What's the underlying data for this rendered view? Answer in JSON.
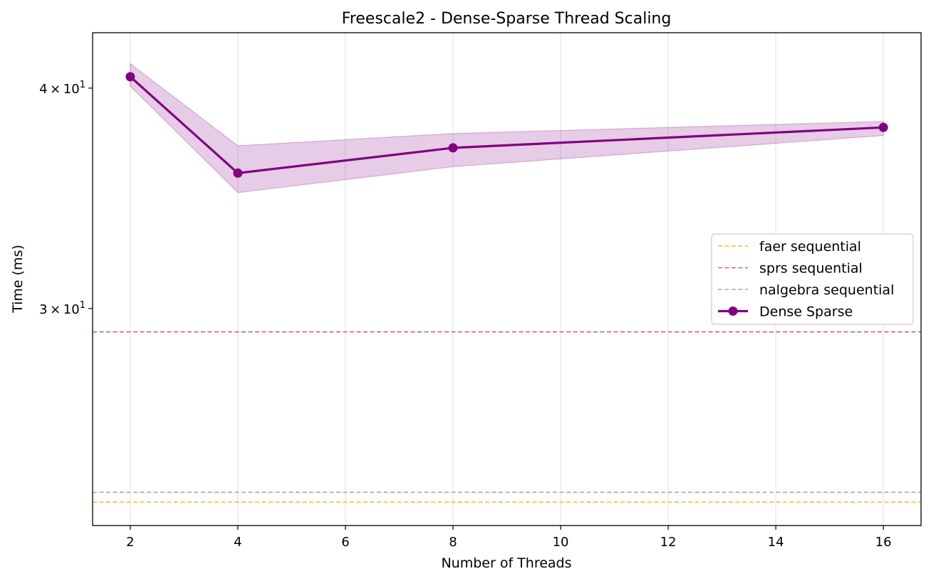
{
  "chart_data": {
    "type": "line",
    "title": "Freescale2 - Dense-Sparse Thread Scaling",
    "xlabel": "Number of Threads",
    "ylabel": "Time (ms)",
    "x_scale": "linear",
    "y_scale": "log",
    "xlim": [
      1.3,
      16.7
    ],
    "ylim": [
      22.6,
      43.0
    ],
    "x_ticks": [
      2,
      4,
      6,
      8,
      10,
      12,
      14,
      16
    ],
    "x_tick_labels": [
      "2",
      "4",
      "6",
      "8",
      "10",
      "12",
      "14",
      "16"
    ],
    "y_ticks": [
      {
        "value": 40,
        "base": "4",
        "mult": "×",
        "exp_base": "10",
        "exp": "1"
      },
      {
        "value": 30,
        "base": "3",
        "mult": "×",
        "exp_base": "10",
        "exp": "1"
      }
    ],
    "grid": "vertical",
    "legend_position": "center-right",
    "series": [
      {
        "name": "Dense Sparse",
        "color": "#800080",
        "fill_color": "#800080",
        "marker": "circle",
        "x": [
          2,
          4,
          8,
          16
        ],
        "values": [
          40.6,
          35.8,
          37.0,
          38.0
        ],
        "band_upper": [
          41.3,
          37.1,
          37.7,
          38.3
        ],
        "band_lower": [
          40.1,
          34.9,
          36.1,
          37.6
        ]
      }
    ],
    "reference_lines": [
      {
        "name": "faer sequential",
        "value": 23.3,
        "color": "#ffa500"
      },
      {
        "name": "sprs sequential",
        "value": 29.1,
        "color": "#c0504d"
      },
      {
        "name": "nalgebra sequential",
        "value": 23.6,
        "color": "#999999"
      }
    ],
    "legend_order": [
      "faer sequential",
      "sprs sequential",
      "nalgebra sequential",
      "Dense Sparse"
    ]
  }
}
